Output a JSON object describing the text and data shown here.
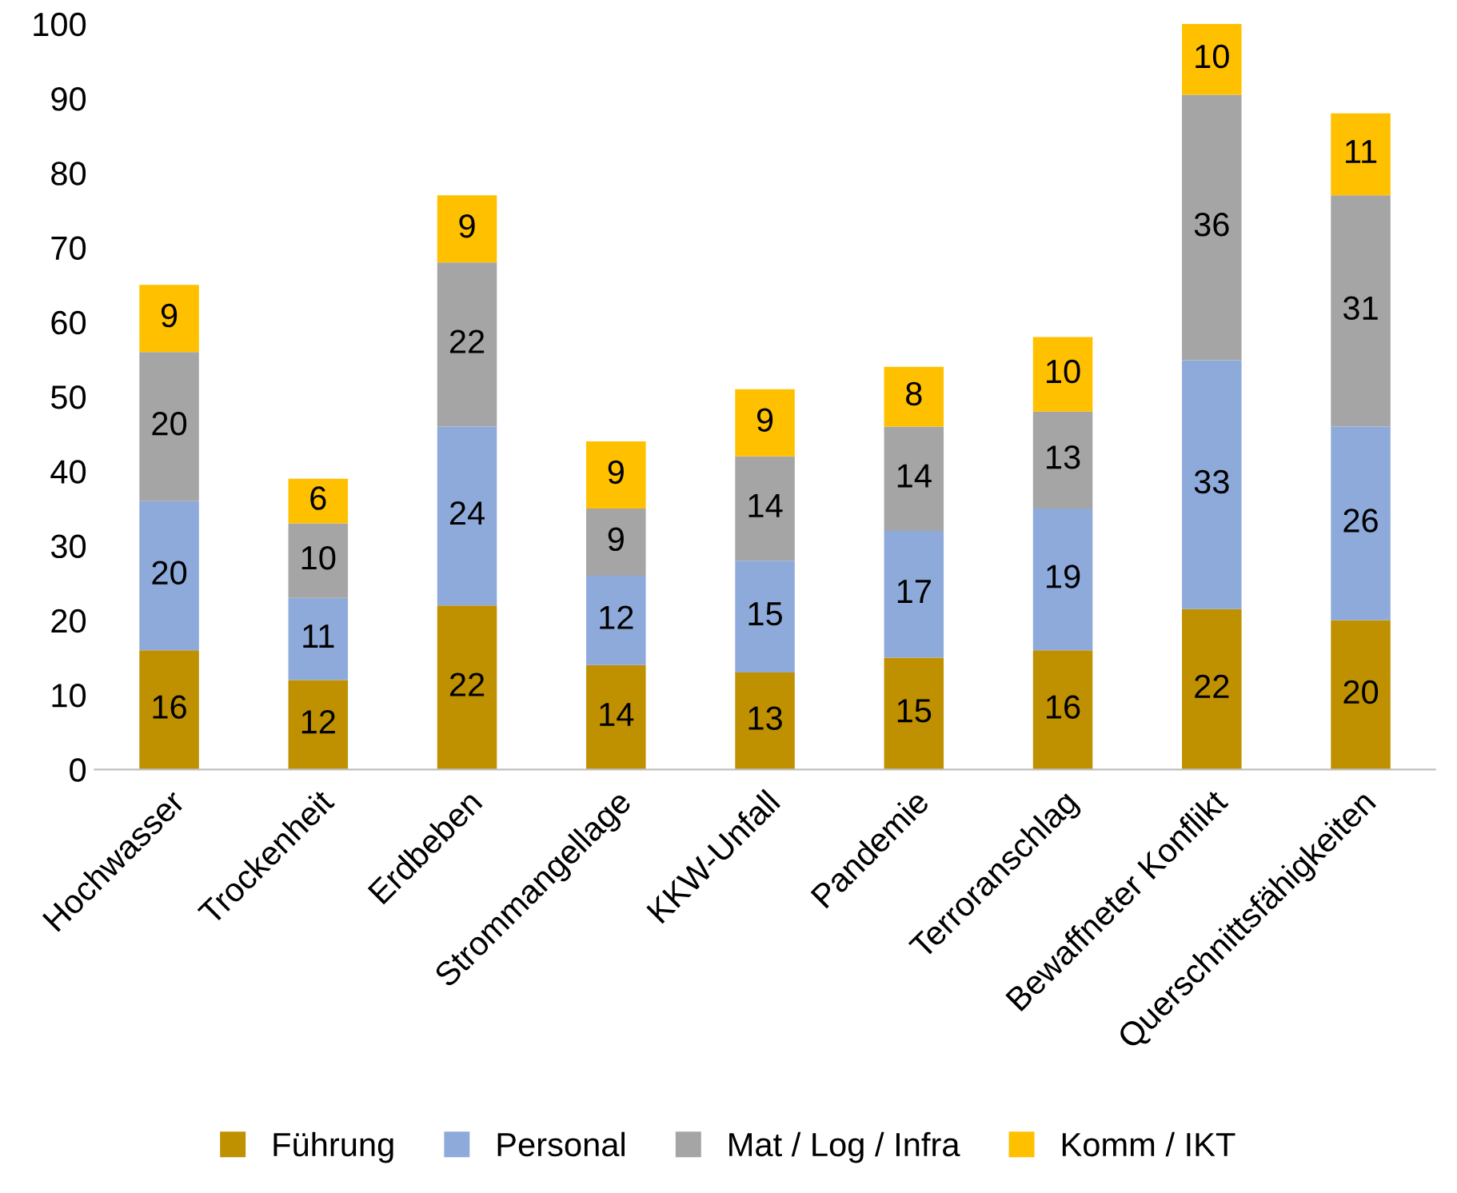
{
  "chart_data": {
    "type": "bar",
    "stacked": true,
    "grid": false,
    "legend": "bottom",
    "categories": [
      "Hochwasser",
      "Trockenheit",
      "Erdbeben",
      "Strommangellage",
      "KKW-Unfall",
      "Pandemie",
      "Terroranschlag",
      "Bewaffneter Konflikt",
      "Querschnittsfähigkeiten"
    ],
    "series": [
      {
        "name": "Führung",
        "color": "#bf9000",
        "values": [
          16,
          12,
          22,
          14,
          13,
          15,
          16,
          21.5,
          20
        ],
        "value_labels": [
          "16",
          "12",
          "22",
          "14",
          "13",
          "15",
          "16",
          "22",
          "20"
        ]
      },
      {
        "name": "Personal",
        "color": "#8eaadb",
        "values": [
          20,
          11,
          24,
          12,
          15,
          17,
          19,
          33.4,
          26
        ],
        "value_labels": [
          "20",
          "11",
          "24",
          "12",
          "15",
          "17",
          "19",
          "33",
          "26"
        ]
      },
      {
        "name": "Mat / Log / Infra",
        "color": "#a5a5a5",
        "values": [
          20,
          10,
          22,
          9,
          14,
          14,
          13,
          35.6,
          31
        ],
        "value_labels": [
          "20",
          "10",
          "22",
          "9",
          "14",
          "14",
          "13",
          "36",
          "31"
        ]
      },
      {
        "name": "Komm / IKT",
        "color": "#ffc000",
        "values": [
          9,
          6,
          9,
          9,
          9,
          8,
          10,
          9.5,
          11
        ],
        "value_labels": [
          "9",
          "6",
          "9",
          "9",
          "9",
          "8",
          "10",
          "10",
          "11"
        ]
      }
    ],
    "ylim": [
      0,
      100
    ],
    "yticks": [
      0,
      10,
      20,
      30,
      40,
      50,
      60,
      70,
      80,
      90,
      100
    ]
  }
}
